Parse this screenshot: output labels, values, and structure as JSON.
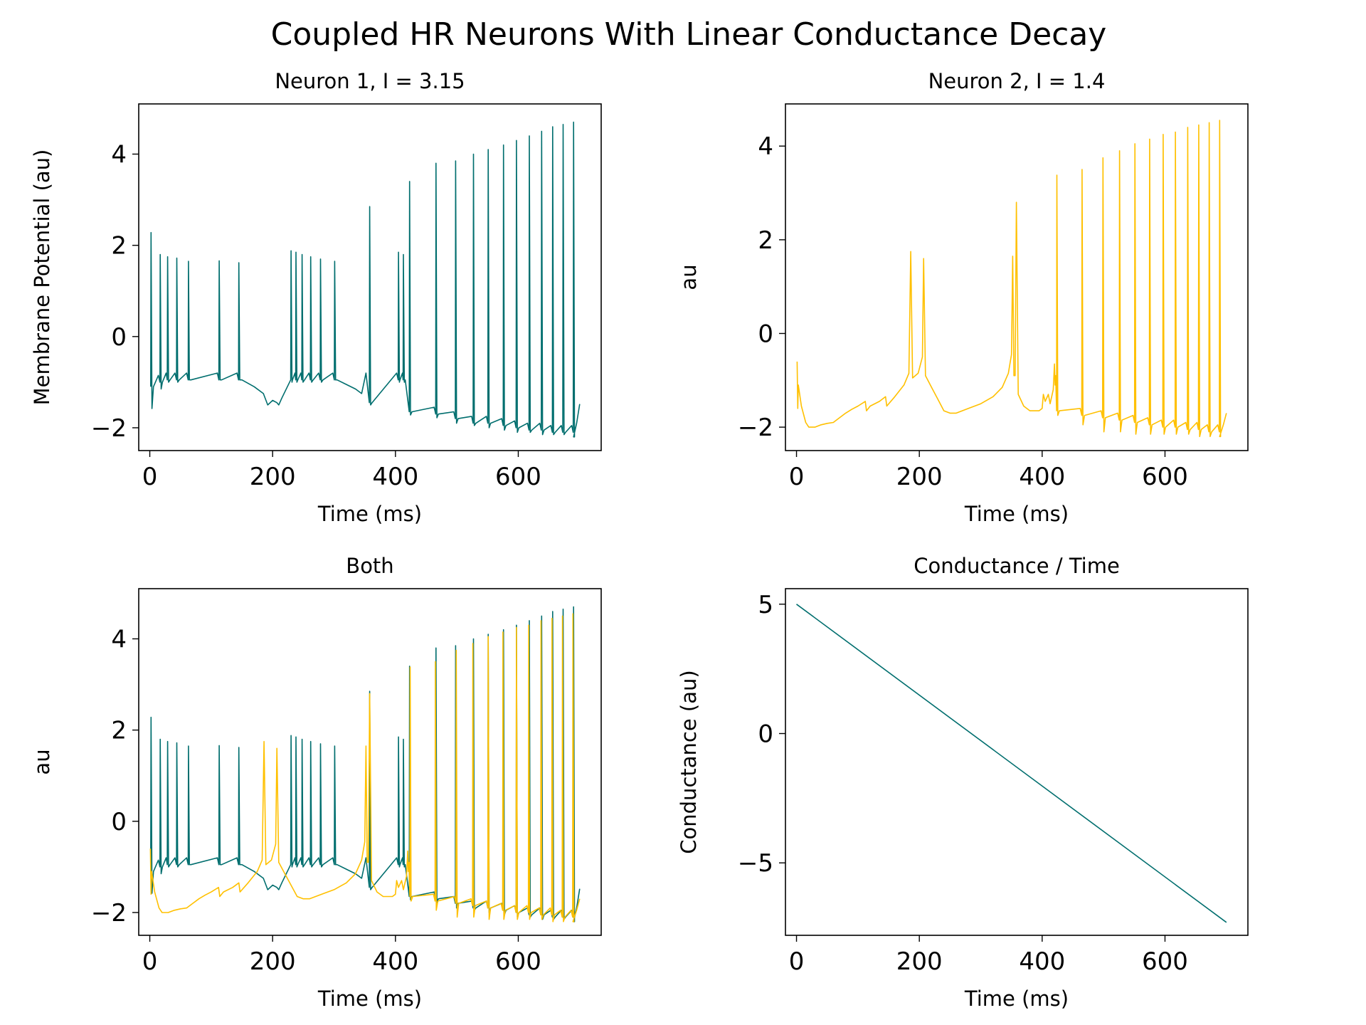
{
  "figure": {
    "title": "Coupled HR Neurons With Linear Conductance Decay"
  },
  "colors": {
    "neuron1": "#006e6e",
    "neuron2": "#ffc000",
    "axis": "#000000",
    "background": "#ffffff"
  },
  "chart_data": [
    {
      "id": "neuron1",
      "type": "line",
      "title": "Neuron 1, I = 3.15",
      "xlabel": "Time (ms)",
      "ylabel": "Membrane Potential (au)",
      "xlim": [
        -18,
        735
      ],
      "ylim": [
        -2.5,
        5.1
      ],
      "xticks": [
        0,
        200,
        400,
        600
      ],
      "yticks": [
        -2,
        0,
        2,
        4
      ],
      "grid": false,
      "series": [
        {
          "color": "#006e6e",
          "segments": [
            {
              "spikes": [
                {
                  "t": 2,
                  "peak": 2.28,
                  "trough": -1.58,
                  "rest": -1.1
                },
                {
                  "t": 17,
                  "peak": 1.8,
                  "trough": -1.15,
                  "rest": -1.0
                },
                {
                  "t": 29,
                  "peak": 1.75,
                  "trough": -1.0,
                  "rest": -0.95
                },
                {
                  "t": 44,
                  "peak": 1.72,
                  "trough": -1.0,
                  "rest": -0.95
                },
                {
                  "t": 63,
                  "peak": 1.65,
                  "trough": -0.95,
                  "rest": -0.95
                },
                {
                  "t": 113,
                  "peak": 1.66,
                  "trough": -0.95,
                  "rest": -0.95
                },
                {
                  "t": 145,
                  "peak": 1.62,
                  "trough": -0.95,
                  "rest": -0.95
                }
              ]
            },
            {
              "points": [
                [
                  150,
                  -0.95
                ],
                [
                  170,
                  -1.1
                ],
                [
                  185,
                  -1.25
                ],
                [
                  192,
                  -1.5
                ],
                [
                  200,
                  -1.4
                ],
                [
                  207,
                  -1.45
                ],
                [
                  210,
                  -1.5
                ],
                [
                  215,
                  -1.35
                ]
              ]
            },
            {
              "spikes": [
                {
                  "t": 230,
                  "peak": 1.88,
                  "trough": -1.0,
                  "rest": -0.95
                },
                {
                  "t": 238,
                  "peak": 1.85,
                  "trough": -1.0,
                  "rest": -0.95
                },
                {
                  "t": 248,
                  "peak": 1.8,
                  "trough": -1.0,
                  "rest": -0.95
                },
                {
                  "t": 262,
                  "peak": 1.75,
                  "trough": -1.0,
                  "rest": -0.95
                },
                {
                  "t": 278,
                  "peak": 1.7,
                  "trough": -1.0,
                  "rest": -0.95
                },
                {
                  "t": 301,
                  "peak": 1.65,
                  "trough": -0.95,
                  "rest": -0.95
                }
              ]
            },
            {
              "points": [
                [
                  305,
                  -0.95
                ],
                [
                  320,
                  -1.05
                ],
                [
                  335,
                  -1.15
                ],
                [
                  345,
                  -1.25
                ],
                [
                  352,
                  -0.8
                ]
              ]
            },
            {
              "spikes": [
                {
                  "t": 358,
                  "peak": 2.85,
                  "trough": -1.5,
                  "rest": -1.45
                },
                {
                  "t": 405,
                  "peak": 1.85,
                  "trough": -1.0,
                  "rest": -0.95
                },
                {
                  "t": 413,
                  "peak": 1.8,
                  "trough": -1.0,
                  "rest": -0.95
                },
                {
                  "t": 423,
                  "peak": 3.4,
                  "trough": -1.72,
                  "rest": -1.65
                },
                {
                  "t": 466,
                  "peak": 3.8,
                  "trough": -1.78,
                  "rest": -1.7
                },
                {
                  "t": 498,
                  "peak": 3.85,
                  "trough": -1.9,
                  "rest": -1.8
                },
                {
                  "t": 527,
                  "peak": 4.0,
                  "trough": -1.95,
                  "rest": -1.9
                },
                {
                  "t": 551,
                  "peak": 4.1,
                  "trough": -2.0,
                  "rest": -1.9
                },
                {
                  "t": 576,
                  "peak": 4.2,
                  "trough": -2.05,
                  "rest": -1.95
                },
                {
                  "t": 597,
                  "peak": 4.3,
                  "trough": -2.1,
                  "rest": -2.0
                },
                {
                  "t": 618,
                  "peak": 4.4,
                  "trough": -2.1,
                  "rest": -2.05
                },
                {
                  "t": 638,
                  "peak": 4.5,
                  "trough": -2.15,
                  "rest": -2.05
                },
                {
                  "t": 656,
                  "peak": 4.6,
                  "trough": -2.15,
                  "rest": -2.1
                },
                {
                  "t": 673,
                  "peak": 4.65,
                  "trough": -2.15,
                  "rest": -2.1
                },
                {
                  "t": 690,
                  "peak": 4.7,
                  "trough": -2.2,
                  "rest": -2.1
                }
              ]
            },
            {
              "points": [
                [
                  690,
                  -2.2
                ],
                [
                  695,
                  -1.9
                ],
                [
                  700,
                  -1.48
                ]
              ]
            }
          ]
        }
      ]
    },
    {
      "id": "neuron2",
      "type": "line",
      "title": "Neuron 2, I = 1.4",
      "xlabel": "Time (ms)",
      "ylabel": "au",
      "xlim": [
        -18,
        735
      ],
      "ylim": [
        -2.5,
        4.9
      ],
      "xticks": [
        0,
        200,
        400,
        600
      ],
      "yticks": [
        -2,
        0,
        2,
        4
      ],
      "grid": false,
      "series": [
        {
          "color": "#ffc000",
          "segments": [
            {
              "points": [
                [
                  1,
                  -0.6
                ],
                [
                  2,
                  -1.6
                ],
                [
                  3,
                  -1.1
                ],
                [
                  8,
                  -1.55
                ],
                [
                  15,
                  -1.9
                ],
                [
                  20,
                  -2.0
                ],
                [
                  30,
                  -2.0
                ],
                [
                  40,
                  -1.95
                ],
                [
                  50,
                  -1.92
                ],
                [
                  60,
                  -1.9
                ],
                [
                  70,
                  -1.8
                ],
                [
                  80,
                  -1.7
                ],
                [
                  90,
                  -1.62
                ],
                [
                  100,
                  -1.55
                ],
                [
                  112,
                  -1.45
                ],
                [
                  114,
                  -1.65
                ],
                [
                  120,
                  -1.55
                ],
                [
                  135,
                  -1.45
                ],
                [
                  145,
                  -1.35
                ],
                [
                  147,
                  -1.55
                ],
                [
                  160,
                  -1.35
                ],
                [
                  175,
                  -1.1
                ],
                [
                  183,
                  -0.85
                ],
                [
                  186,
                  1.75
                ],
                [
                  189,
                  -0.95
                ],
                [
                  198,
                  -0.85
                ],
                [
                  205,
                  -0.5
                ],
                [
                  207,
                  1.6
                ],
                [
                  210,
                  -0.9
                ],
                [
                  220,
                  -1.15
                ],
                [
                  232,
                  -1.45
                ],
                [
                  240,
                  -1.65
                ],
                [
                  250,
                  -1.7
                ],
                [
                  260,
                  -1.7
                ],
                [
                  280,
                  -1.6
                ],
                [
                  300,
                  -1.5
                ],
                [
                  320,
                  -1.35
                ],
                [
                  335,
                  -1.15
                ],
                [
                  345,
                  -0.85
                ],
                [
                  350,
                  -0.45
                ],
                [
                  352,
                  1.65
                ],
                [
                  354,
                  -0.9
                ],
                [
                  356,
                  -0.9
                ],
                [
                  358,
                  2.8
                ],
                [
                  361,
                  -1.3
                ],
                [
                  370,
                  -1.55
                ],
                [
                  380,
                  -1.65
                ],
                [
                  395,
                  -1.65
                ],
                [
                  400,
                  -1.6
                ],
                [
                  402,
                  -1.3
                ],
                [
                  405,
                  -1.45
                ],
                [
                  410,
                  -1.3
                ],
                [
                  413,
                  -1.5
                ],
                [
                  418,
                  -1.2
                ],
                [
                  420,
                  -0.65
                ],
                [
                  421,
                  -1.1
                ],
                [
                  422,
                  -0.9
                ]
              ]
            },
            {
              "spikes": [
                {
                  "t": 424,
                  "peak": 3.38,
                  "trough": -1.75,
                  "rest": -1.65
                },
                {
                  "t": 465,
                  "peak": 3.5,
                  "trough": -1.95,
                  "rest": -1.75
                },
                {
                  "t": 499,
                  "peak": 3.75,
                  "trough": -2.1,
                  "rest": -1.8
                },
                {
                  "t": 526,
                  "peak": 3.9,
                  "trough": -2.1,
                  "rest": -1.85
                },
                {
                  "t": 551,
                  "peak": 4.05,
                  "trough": -2.15,
                  "rest": -1.9
                },
                {
                  "t": 575,
                  "peak": 4.15,
                  "trough": -2.15,
                  "rest": -1.95
                },
                {
                  "t": 597,
                  "peak": 4.25,
                  "trough": -2.15,
                  "rest": -2.0
                },
                {
                  "t": 617,
                  "peak": 4.3,
                  "trough": -2.15,
                  "rest": -2.0
                },
                {
                  "t": 637,
                  "peak": 4.4,
                  "trough": -2.15,
                  "rest": -2.05
                },
                {
                  "t": 655,
                  "peak": 4.45,
                  "trough": -2.2,
                  "rest": -2.05
                },
                {
                  "t": 672,
                  "peak": 4.5,
                  "trough": -2.2,
                  "rest": -2.1
                },
                {
                  "t": 689,
                  "peak": 4.55,
                  "trough": -2.2,
                  "rest": -2.1
                }
              ]
            },
            {
              "points": [
                [
                  689,
                  -2.2
                ],
                [
                  695,
                  -1.95
                ],
                [
                  700,
                  -1.7
                ]
              ]
            }
          ]
        }
      ]
    },
    {
      "id": "both",
      "type": "line",
      "title": "Both",
      "xlabel": "Time (ms)",
      "ylabel": "au",
      "xlim": [
        -18,
        735
      ],
      "ylim": [
        -2.5,
        5.1
      ],
      "xticks": [
        0,
        200,
        400,
        600
      ],
      "yticks": [
        -2,
        0,
        2,
        4
      ],
      "grid": false,
      "series_from": [
        "neuron1",
        "neuron2"
      ]
    },
    {
      "id": "conductance",
      "type": "line",
      "title": "Conductance / Time",
      "xlabel": "Time (ms)",
      "ylabel": "Conductance (au)",
      "xlim": [
        -18,
        735
      ],
      "ylim": [
        -7.8,
        5.6
      ],
      "xticks": [
        0,
        200,
        400,
        600
      ],
      "yticks": [
        -5,
        0,
        5
      ],
      "grid": false,
      "series": [
        {
          "color": "#006e6e",
          "segments": [
            {
              "points": [
                [
                  0,
                  5.0
                ],
                [
                  700,
                  -7.3
                ]
              ]
            }
          ]
        }
      ]
    }
  ]
}
